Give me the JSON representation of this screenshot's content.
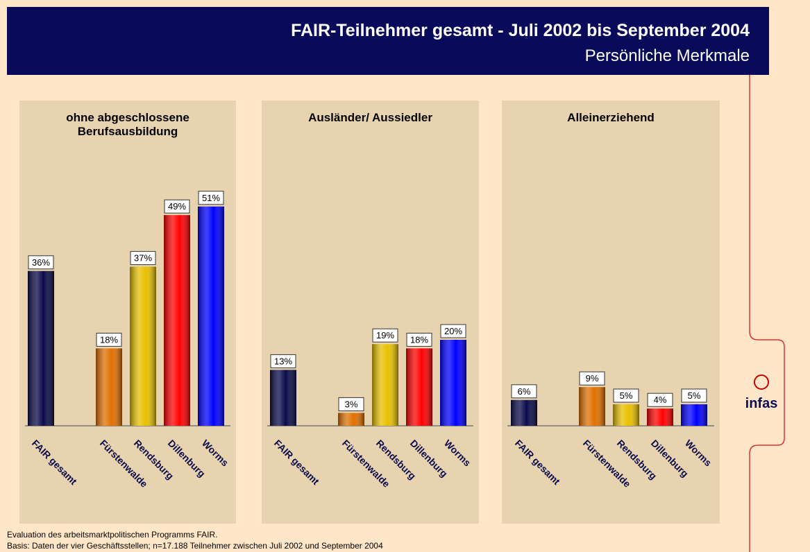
{
  "header": {
    "title": "FAIR-Teilnehmer gesamt - Juli 2002 bis September 2004",
    "subtitle": "Persönliche Merkmale"
  },
  "chart_data": [
    {
      "type": "bar",
      "title": "ohne abgeschlossene Berufsausbildung",
      "categories": [
        "FAIR gesamt",
        null,
        "Fürstenwalde",
        "Rendsburg",
        "Dillenburg",
        "Worms"
      ],
      "values": [
        36,
        null,
        18,
        37,
        49,
        51
      ],
      "value_labels": [
        "36%",
        null,
        "18%",
        "37%",
        "49%",
        "51%"
      ],
      "colors": [
        "#0a0a4a",
        null,
        "#e07000",
        "#e8c000",
        "#ff0000",
        "#0000ff"
      ]
    },
    {
      "type": "bar",
      "title": "Ausländer/ Aussiedler",
      "categories": [
        "FAIR gesamt",
        null,
        "Fürstenwalde",
        "Rendsburg",
        "Dillenburg",
        "Worms"
      ],
      "values": [
        13,
        null,
        3,
        19,
        18,
        20
      ],
      "value_labels": [
        "13%",
        null,
        "3%",
        "19%",
        "18%",
        "20%"
      ],
      "colors": [
        "#0a0a4a",
        null,
        "#e07000",
        "#e8c000",
        "#ff0000",
        "#0000ff"
      ]
    },
    {
      "type": "bar",
      "title": "Alleinerziehend",
      "categories": [
        "FAIR gesamt",
        null,
        "Fürstenwalde",
        "Rendsburg",
        "Dillenburg",
        "Worms"
      ],
      "values": [
        6,
        null,
        9,
        5,
        4,
        5
      ],
      "value_labels": [
        "6%",
        null,
        "9%",
        "5%",
        "4%",
        "5%"
      ],
      "colors": [
        "#0a0a4a",
        null,
        "#e07000",
        "#e8c000",
        "#ff0000",
        "#0000ff"
      ]
    }
  ],
  "footer": {
    "line1": "Evaluation des arbeitsmarktpolitischen Programms FAIR.",
    "line2": "Basis: Daten der vier Geschäftsstellen; n=17.188 Teilnehmer zwischen Juli 2002 und September 2004"
  },
  "logo": "infas"
}
